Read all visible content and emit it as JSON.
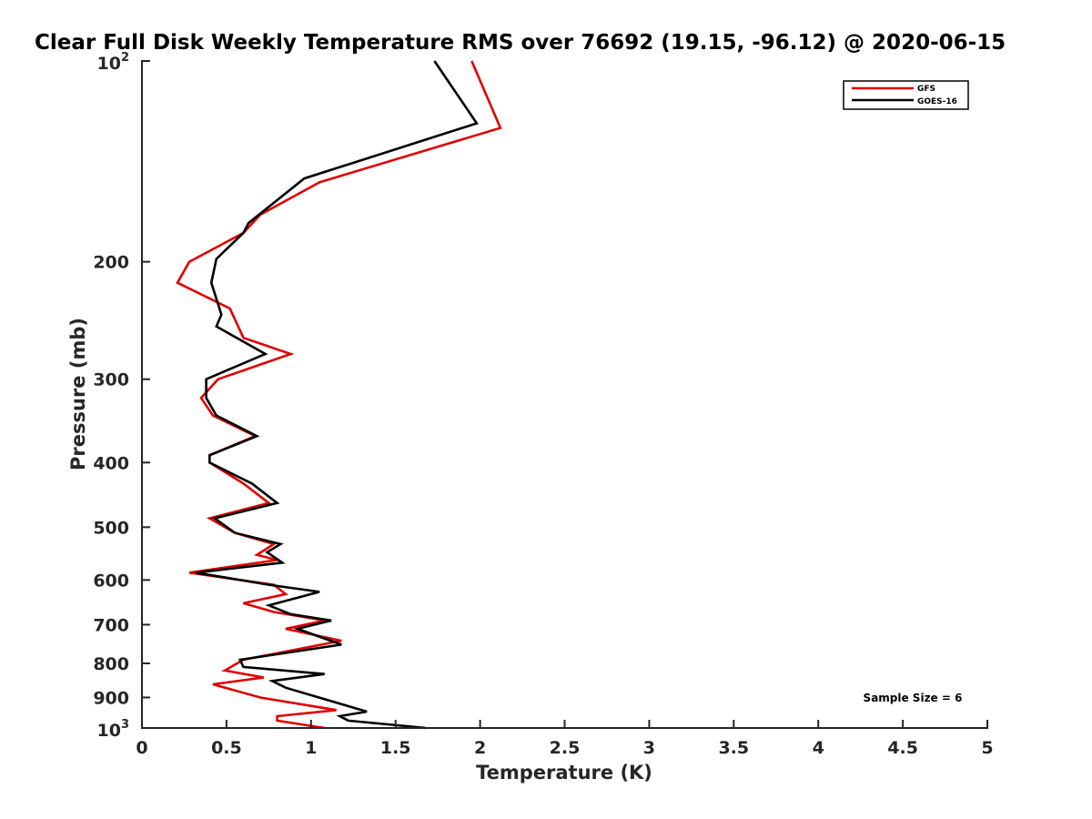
{
  "chart_data": {
    "type": "line",
    "title": "Clear Full Disk Weekly Temperature RMS over 76692 (19.15, -96.12) @ 2020-06-15",
    "xlabel": "Temperature (K)",
    "ylabel": "Pressure (mb)",
    "xlim": [
      0,
      5
    ],
    "ylim": [
      100,
      1000
    ],
    "yscale": "log",
    "y_reversed": true,
    "x_ticks": [
      0,
      0.5,
      1,
      1.5,
      2,
      2.5,
      3,
      3.5,
      4,
      4.5,
      5
    ],
    "x_tick_labels": [
      "0",
      "0.5",
      "1",
      "1.5",
      "2",
      "2.5",
      "3",
      "3.5",
      "4",
      "4.5",
      "5"
    ],
    "y_ticks": [
      200,
      300,
      400,
      500,
      600,
      700,
      800,
      900
    ],
    "y_tick_labels": [
      "200",
      "300",
      "400",
      "500",
      "600",
      "700",
      "800",
      "900"
    ],
    "y_top_label": {
      "base": "10",
      "exp": "2"
    },
    "y_bottom_label": {
      "base": "10",
      "exp": "3"
    },
    "grid": false,
    "legend_position": "top-right",
    "annotation": "Sample Size = 6",
    "series": [
      {
        "name": "GFS",
        "color": "#e00000",
        "points": [
          [
            1.95,
            100
          ],
          [
            2.12,
            126
          ],
          [
            1.05,
            152
          ],
          [
            0.7,
            170
          ],
          [
            0.6,
            181
          ],
          [
            0.28,
            200
          ],
          [
            0.21,
            215
          ],
          [
            0.52,
            235
          ],
          [
            0.6,
            260
          ],
          [
            0.88,
            275
          ],
          [
            0.45,
            300
          ],
          [
            0.35,
            320
          ],
          [
            0.42,
            340
          ],
          [
            0.67,
            365
          ],
          [
            0.4,
            390
          ],
          [
            0.4,
            400
          ],
          [
            0.6,
            430
          ],
          [
            0.75,
            460
          ],
          [
            0.4,
            485
          ],
          [
            0.55,
            510
          ],
          [
            0.78,
            530
          ],
          [
            0.68,
            550
          ],
          [
            0.8,
            560
          ],
          [
            0.28,
            585
          ],
          [
            0.78,
            610
          ],
          [
            0.85,
            630
          ],
          [
            0.6,
            650
          ],
          [
            0.78,
            670
          ],
          [
            1.08,
            690
          ],
          [
            0.85,
            710
          ],
          [
            1.18,
            740
          ],
          [
            0.6,
            790
          ],
          [
            0.49,
            820
          ],
          [
            0.72,
            840
          ],
          [
            0.42,
            860
          ],
          [
            0.7,
            900
          ],
          [
            1.15,
            940
          ],
          [
            0.8,
            960
          ],
          [
            0.8,
            975
          ],
          [
            1.08,
            1000
          ]
        ]
      },
      {
        "name": "GOES-16",
        "color": "#000000",
        "points": [
          [
            1.73,
            100
          ],
          [
            1.98,
            124
          ],
          [
            0.96,
            150
          ],
          [
            0.63,
            175
          ],
          [
            0.6,
            181
          ],
          [
            0.44,
            198
          ],
          [
            0.41,
            215
          ],
          [
            0.47,
            240
          ],
          [
            0.44,
            250
          ],
          [
            0.73,
            275
          ],
          [
            0.38,
            300
          ],
          [
            0.38,
            320
          ],
          [
            0.44,
            340
          ],
          [
            0.68,
            365
          ],
          [
            0.4,
            390
          ],
          [
            0.4,
            400
          ],
          [
            0.65,
            430
          ],
          [
            0.8,
            460
          ],
          [
            0.43,
            485
          ],
          [
            0.55,
            510
          ],
          [
            0.82,
            530
          ],
          [
            0.74,
            545
          ],
          [
            0.83,
            565
          ],
          [
            0.32,
            585
          ],
          [
            0.75,
            610
          ],
          [
            1.05,
            625
          ],
          [
            0.75,
            655
          ],
          [
            0.88,
            675
          ],
          [
            1.12,
            690
          ],
          [
            0.92,
            710
          ],
          [
            1.18,
            750
          ],
          [
            0.58,
            790
          ],
          [
            0.6,
            810
          ],
          [
            1.08,
            830
          ],
          [
            0.77,
            850
          ],
          [
            0.85,
            870
          ],
          [
            1.33,
            945
          ],
          [
            1.17,
            960
          ],
          [
            1.22,
            975
          ],
          [
            1.68,
            1000
          ]
        ]
      }
    ]
  }
}
